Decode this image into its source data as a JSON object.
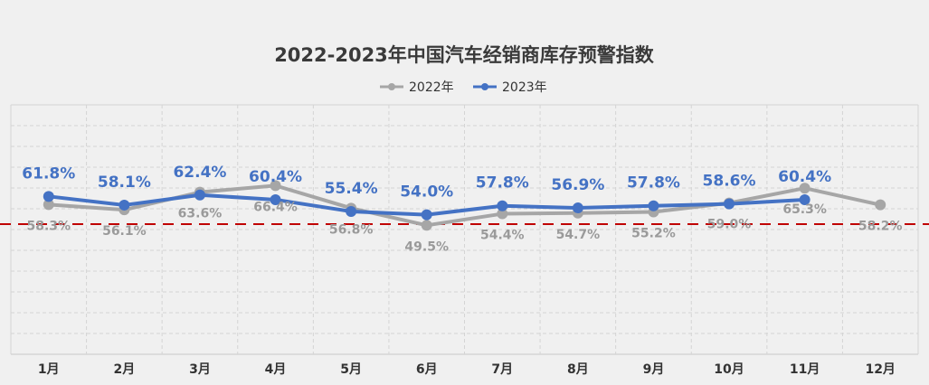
{
  "chart_data": {
    "type": "line",
    "title": "2022-2023年中国汽车经销商库存预警指数",
    "categories": [
      "1月",
      "2月",
      "3月",
      "4月",
      "5月",
      "6月",
      "7月",
      "8月",
      "9月",
      "10月",
      "11月",
      "12月"
    ],
    "series": [
      {
        "name": "2022年",
        "color": "#a6a6a6",
        "values": [
          58.3,
          56.1,
          63.6,
          66.4,
          56.8,
          49.5,
          54.4,
          54.7,
          55.2,
          59.0,
          65.3,
          58.2
        ],
        "labels": [
          "58.3%",
          "56.1%",
          "63.6%",
          "66.4%",
          "56.8%",
          "49.5%",
          "54.4%",
          "54.7%",
          "55.2%",
          "59.0%",
          "65.3%",
          "58.2%"
        ]
      },
      {
        "name": "2023年",
        "color": "#4472c4",
        "values": [
          61.8,
          58.1,
          62.4,
          60.4,
          55.4,
          54.0,
          57.8,
          56.9,
          57.8,
          58.6,
          60.4,
          null
        ],
        "labels": [
          "61.8%",
          "58.1%",
          "62.4%",
          "60.4%",
          "55.4%",
          "54.0%",
          "57.8%",
          "56.9%",
          "57.8%",
          "58.6%",
          "60.4%",
          ""
        ]
      }
    ],
    "reference_line": {
      "value": 50,
      "color": "#c00000",
      "style": "dashed"
    },
    "legend_position": "top-center",
    "grid": true
  }
}
